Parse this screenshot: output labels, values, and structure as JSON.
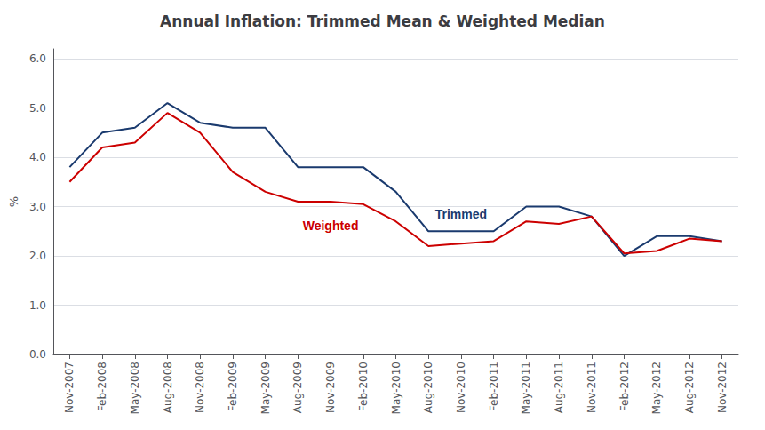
{
  "chart_data": {
    "type": "line",
    "title": "Annual Inflation: Trimmed Mean & Weighted Median",
    "ylabel": "%",
    "categories": [
      "Nov-2007",
      "Feb-2008",
      "May-2008",
      "Aug-2008",
      "Nov-2008",
      "Feb-2009",
      "May-2009",
      "Aug-2009",
      "Nov-2009",
      "Feb-2010",
      "May-2010",
      "Aug-2010",
      "Nov-2010",
      "Feb-2011",
      "May-2011",
      "Aug-2011",
      "Nov-2011",
      "Feb-2012",
      "May-2012",
      "Aug-2012",
      "Nov-2012"
    ],
    "series": [
      {
        "name": "Trimmed",
        "color": "#1a3a6e",
        "values": [
          3.8,
          4.5,
          4.6,
          5.1,
          4.7,
          4.6,
          4.6,
          3.8,
          3.8,
          3.8,
          3.3,
          2.5,
          2.5,
          2.5,
          3.0,
          3.0,
          2.8,
          2.0,
          2.4,
          2.4,
          2.3
        ]
      },
      {
        "name": "Weighted",
        "color": "#cc0000",
        "values": [
          3.5,
          4.2,
          4.3,
          4.9,
          4.5,
          3.7,
          3.3,
          3.1,
          3.1,
          3.05,
          2.7,
          2.2,
          2.25,
          2.3,
          2.7,
          2.65,
          2.8,
          2.05,
          2.1,
          2.35,
          2.3
        ]
      }
    ],
    "ylim": [
      0.0,
      6.2
    ],
    "yticks": [
      {
        "value": 0,
        "label": "0.0"
      },
      {
        "value": 1,
        "label": "1.0"
      },
      {
        "value": 2,
        "label": "2.0"
      },
      {
        "value": 3,
        "label": "3.0"
      },
      {
        "value": 4,
        "label": "4.0"
      },
      {
        "value": 5,
        "label": "5.0"
      },
      {
        "value": 6,
        "label": "6.0"
      }
    ],
    "grid": true
  }
}
